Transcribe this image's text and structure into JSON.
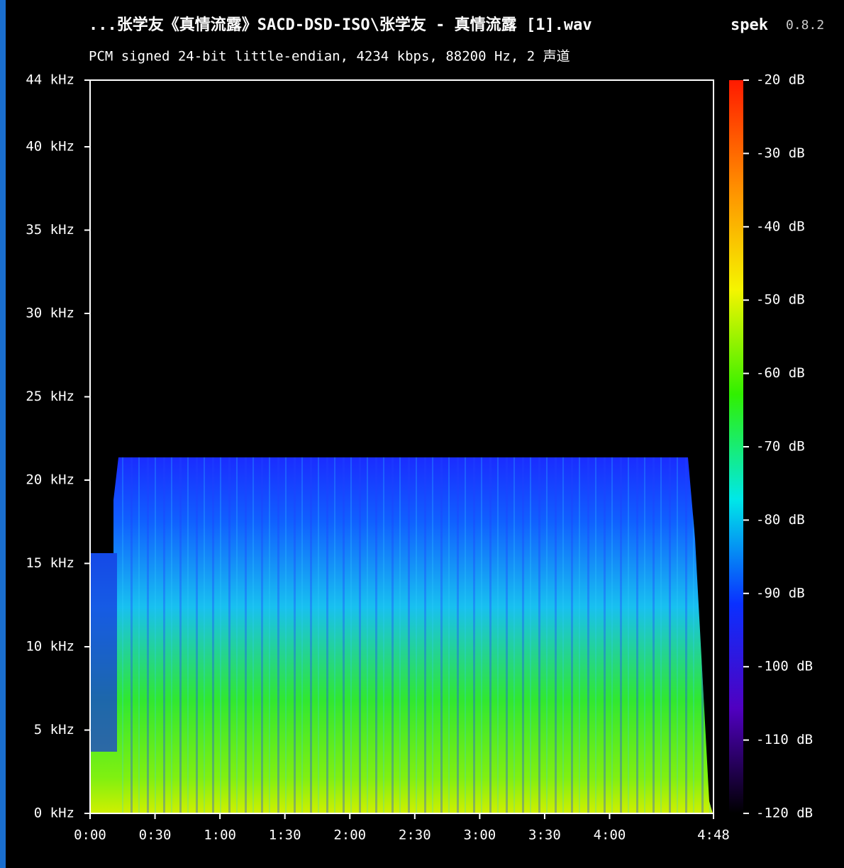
{
  "chart_data": {
    "type": "spectrogram",
    "title": "...张学友《真情流露》SACD-DSD-ISO\\张学友 - 真情流露 [1].wav",
    "app_name": "spek",
    "app_version": "0.8.2",
    "subtitle": "PCM signed 24-bit little-endian, 4234 kbps, 88200 Hz, 2 声道",
    "xlim": [
      0,
      288
    ],
    "xticks": [
      {
        "value": 0,
        "label": "0:00"
      },
      {
        "value": 30,
        "label": "0:30"
      },
      {
        "value": 60,
        "label": "1:00"
      },
      {
        "value": 90,
        "label": "1:30"
      },
      {
        "value": 120,
        "label": "2:00"
      },
      {
        "value": 150,
        "label": "2:30"
      },
      {
        "value": 180,
        "label": "3:00"
      },
      {
        "value": 210,
        "label": "3:30"
      },
      {
        "value": 240,
        "label": "4:00"
      },
      {
        "value": 288,
        "label": "4:48"
      }
    ],
    "ylim": [
      0,
      44
    ],
    "yticks": [
      {
        "value": 0,
        "label": "0 kHz"
      },
      {
        "value": 5,
        "label": "5 kHz"
      },
      {
        "value": 10,
        "label": "10 kHz"
      },
      {
        "value": 15,
        "label": "15 kHz"
      },
      {
        "value": 20,
        "label": "20 kHz"
      },
      {
        "value": 25,
        "label": "25 kHz"
      },
      {
        "value": 30,
        "label": "30 kHz"
      },
      {
        "value": 35,
        "label": "35 kHz"
      },
      {
        "value": 40,
        "label": "40 kHz"
      },
      {
        "value": 44,
        "label": "44 kHz"
      }
    ],
    "clim": [
      -120,
      -20
    ],
    "cticks": [
      {
        "value": -20,
        "label": "-20 dB"
      },
      {
        "value": -30,
        "label": "-30 dB"
      },
      {
        "value": -40,
        "label": "-40 dB"
      },
      {
        "value": -50,
        "label": "-50 dB"
      },
      {
        "value": -60,
        "label": "-60 dB"
      },
      {
        "value": -70,
        "label": "-70 dB"
      },
      {
        "value": -80,
        "label": "-80 dB"
      },
      {
        "value": -90,
        "label": "-90 dB"
      },
      {
        "value": -100,
        "label": "-100 dB"
      },
      {
        "value": -110,
        "label": "-110 dB"
      },
      {
        "value": -120,
        "label": "-120 dB"
      }
    ],
    "colormap": [
      "#ff1a00",
      "#ff8c00",
      "#f5f500",
      "#30f000",
      "#00e8e8",
      "#0a30ff",
      "#5000c0",
      "#000000"
    ]
  }
}
